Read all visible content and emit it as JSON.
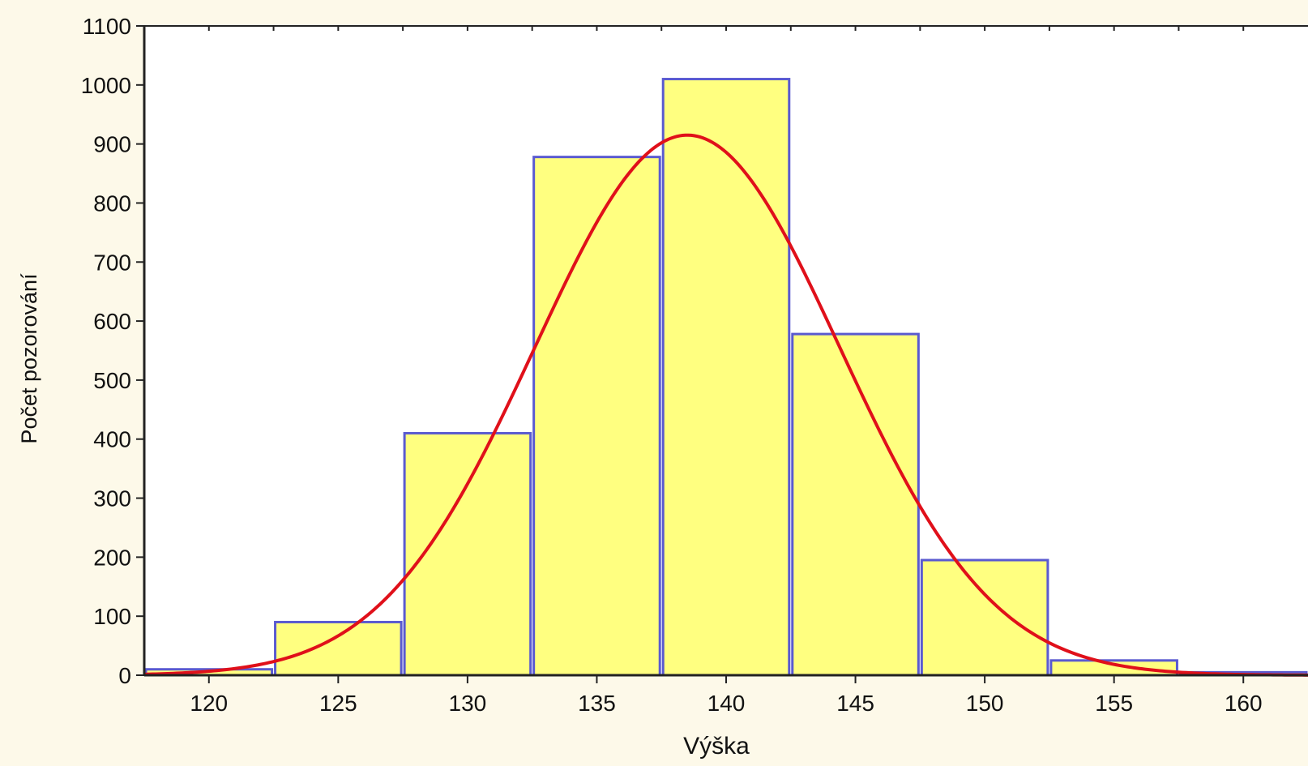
{
  "colors": {
    "background": "#fdf9e9",
    "plot_background": "#ffffff",
    "bar_fill": "#ffff80",
    "bar_stroke": "#5a5ad0",
    "curve": "#e0101a",
    "axis": "#222222"
  },
  "chart_data": {
    "type": "bar",
    "subtype": "histogram with fitted normal curve",
    "xlabel": "Výška",
    "ylabel": "Počet pozorování",
    "xlim": [
      117.5,
      162.5
    ],
    "ylim": [
      0,
      1100
    ],
    "x_ticks": [
      120,
      125,
      130,
      135,
      140,
      145,
      150,
      155,
      160
    ],
    "y_ticks": [
      0,
      100,
      200,
      300,
      400,
      500,
      600,
      700,
      800,
      900,
      1000,
      1100
    ],
    "bin_width": 5,
    "bins": [
      {
        "center": 120,
        "count": 10
      },
      {
        "center": 125,
        "count": 90
      },
      {
        "center": 130,
        "count": 410
      },
      {
        "center": 135,
        "count": 878
      },
      {
        "center": 140,
        "count": 1010
      },
      {
        "center": 145,
        "count": 578
      },
      {
        "center": 150,
        "count": 195
      },
      {
        "center": 155,
        "count": 25
      },
      {
        "center": 160,
        "count": 5
      }
    ],
    "fitted_curve": {
      "type": "normal",
      "mean": 138.5,
      "sd": 5.9,
      "peak": 915
    },
    "grid": false,
    "legend": "none"
  }
}
